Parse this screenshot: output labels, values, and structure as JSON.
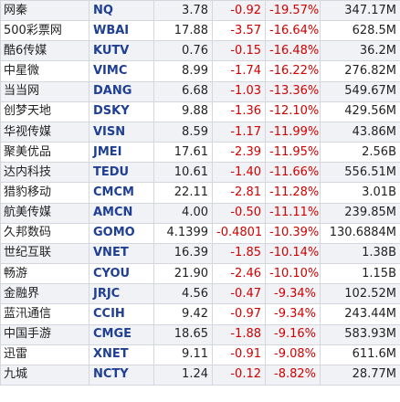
{
  "table": {
    "rows": [
      [
        "网秦",
        "NQ",
        "3.78",
        "-0.92",
        "-19.57%",
        "347.17M"
      ],
      [
        "500彩票网",
        "WBAI",
        "17.88",
        "-3.57",
        "-16.64%",
        "628.5M"
      ],
      [
        "酷6传媒",
        "KUTV",
        "0.76",
        "-0.15",
        "-16.48%",
        "36.2M"
      ],
      [
        "中星微",
        "VIMC",
        "8.99",
        "-1.74",
        "-16.22%",
        "276.82M"
      ],
      [
        "当当网",
        "DANG",
        "6.68",
        "-1.03",
        "-13.36%",
        "549.67M"
      ],
      [
        "创梦天地",
        "DSKY",
        "9.88",
        "-1.36",
        "-12.10%",
        "429.56M"
      ],
      [
        "华视传媒",
        "VISN",
        "8.59",
        "-1.17",
        "-11.99%",
        "43.86M"
      ],
      [
        "聚美优品",
        "JMEI",
        "17.61",
        "-2.39",
        "-11.95%",
        "2.56B"
      ],
      [
        "达内科技",
        "TEDU",
        "10.61",
        "-1.40",
        "-11.66%",
        "556.51M"
      ],
      [
        "猎豹移动",
        "CMCM",
        "22.11",
        "-2.81",
        "-11.28%",
        "3.01B"
      ],
      [
        "航美传媒",
        "AMCN",
        "4.00",
        "-0.50",
        "-11.11%",
        "239.85M"
      ],
      [
        "久邦数码",
        "GOMO",
        "4.1399",
        "-0.4801",
        "-10.39%",
        "130.6884M"
      ],
      [
        "世纪互联",
        "VNET",
        "16.39",
        "-1.85",
        "-10.14%",
        "1.38B"
      ],
      [
        "畅游",
        "CYOU",
        "21.90",
        "-2.46",
        "-10.10%",
        "1.15B"
      ],
      [
        "金融界",
        "JRJC",
        "4.56",
        "-0.47",
        "-9.34%",
        "102.52M"
      ],
      [
        "蓝汛通信",
        "CCIH",
        "9.42",
        "-0.97",
        "-9.34%",
        "243.44M"
      ],
      [
        "中国手游",
        "CMGE",
        "18.65",
        "-1.88",
        "-9.16%",
        "583.93M"
      ],
      [
        "迅雷",
        "XNET",
        "9.11",
        "-0.91",
        "-9.08%",
        "611.6M"
      ],
      [
        "九城",
        "NCTY",
        "1.24",
        "-0.12",
        "-8.82%",
        "28.77M"
      ]
    ]
  }
}
